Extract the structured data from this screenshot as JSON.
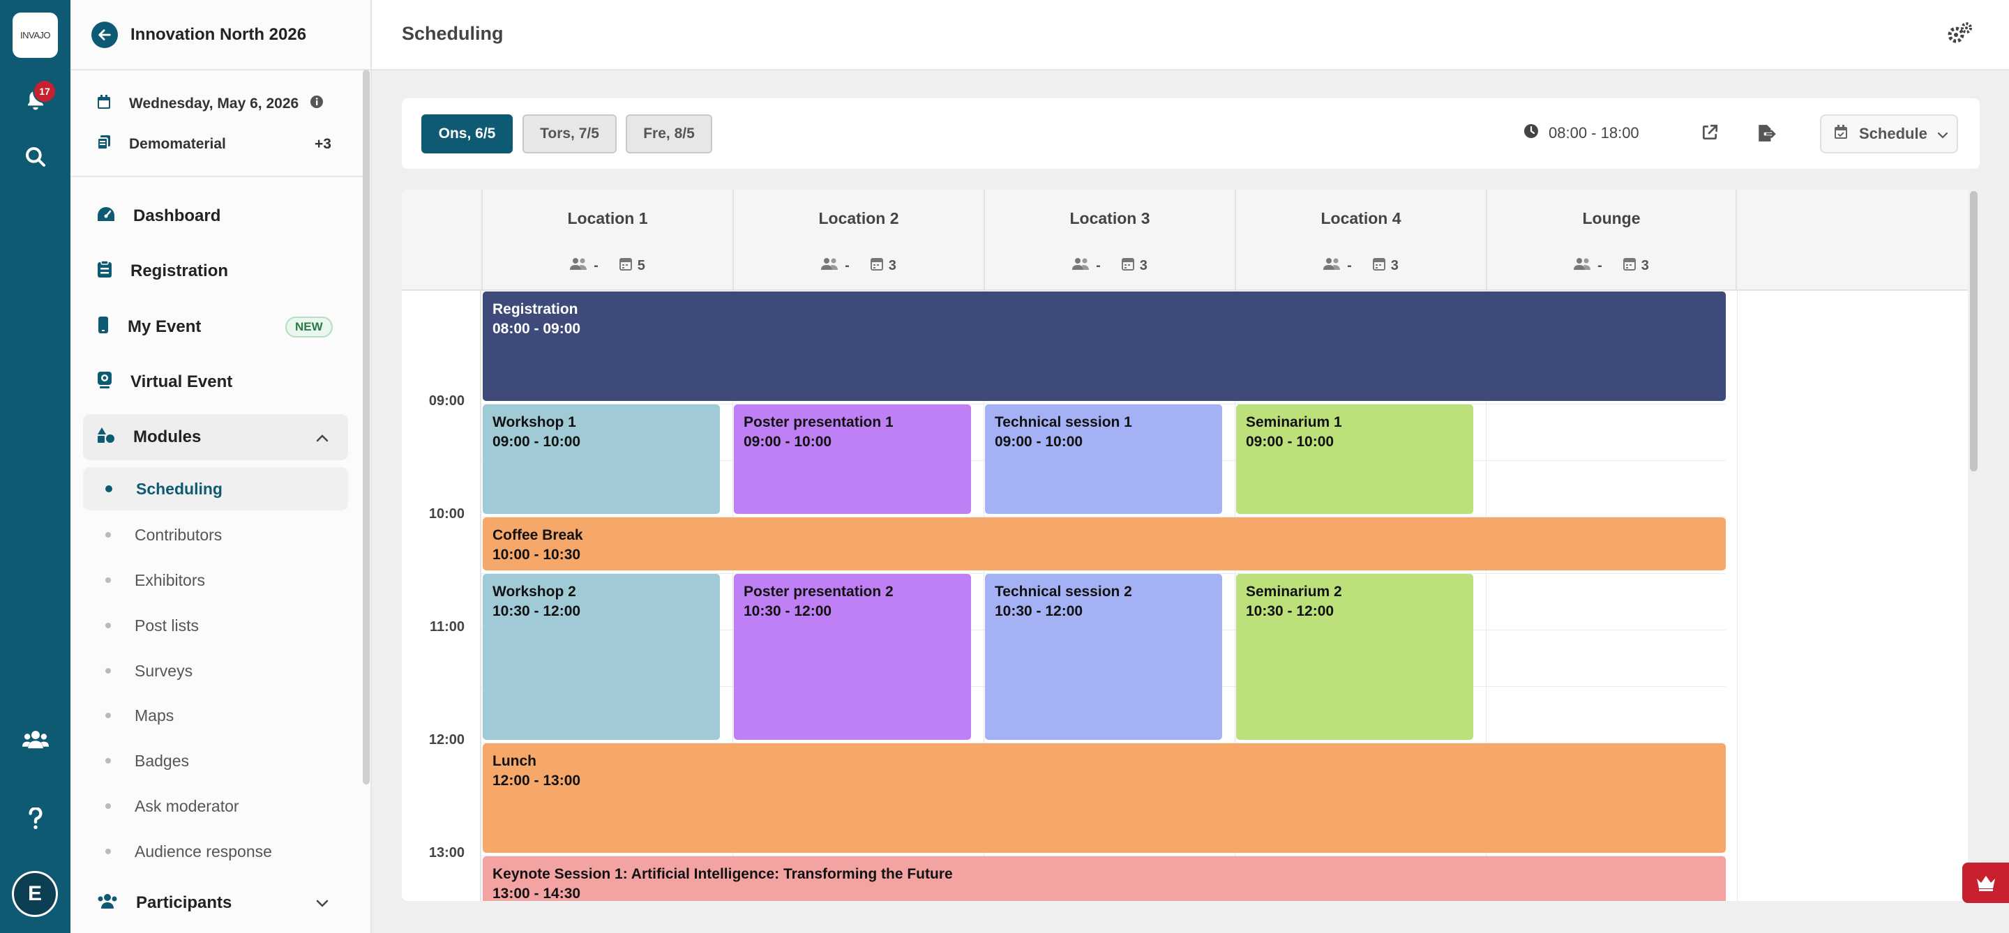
{
  "rail": {
    "logo_text": "INVAJO",
    "notification_count": "17",
    "user_initial": "E"
  },
  "sidebar": {
    "event_name": "Innovation North 2026",
    "date_label": "Wednesday, May 6, 2026",
    "material_label": "Demomaterial",
    "material_extra": "+3",
    "nav": {
      "dashboard": "Dashboard",
      "registration": "Registration",
      "my_event": "My Event",
      "my_event_badge": "NEW",
      "virtual_event": "Virtual Event",
      "modules": "Modules",
      "participants": "Participants"
    },
    "modules": [
      "Scheduling",
      "Contributors",
      "Exhibitors",
      "Post lists",
      "Surveys",
      "Maps",
      "Badges",
      "Ask moderator",
      "Audience response"
    ]
  },
  "header": {
    "title": "Scheduling"
  },
  "toolbar": {
    "days": [
      {
        "label": "Ons, 6/5",
        "active": true
      },
      {
        "label": "Tors, 7/5",
        "active": false
      },
      {
        "label": "Fre, 8/5",
        "active": false
      }
    ],
    "time_range": "08:00 - 18:00",
    "view_label": "Schedule"
  },
  "calendar": {
    "locations": [
      {
        "name": "Location 1",
        "people": "-",
        "count": "5"
      },
      {
        "name": "Location 2",
        "people": "-",
        "count": "3"
      },
      {
        "name": "Location 3",
        "people": "-",
        "count": "3"
      },
      {
        "name": "Location 4",
        "people": "-",
        "count": "3"
      },
      {
        "name": "Lounge",
        "people": "-",
        "count": "3"
      }
    ],
    "time_labels": [
      "09:00",
      "10:00",
      "11:00",
      "12:00",
      "13:00"
    ],
    "events": [
      {
        "title": "Registration",
        "time": "08:00 - 09:00",
        "color": "#3d4a7a"
      },
      {
        "title": "Workshop 1",
        "time": "09:00 - 10:00",
        "color": "#a0cbd6"
      },
      {
        "title": "Poster presentation 1",
        "time": "09:00 - 10:00",
        "color": "#c080f5"
      },
      {
        "title": "Technical session 1",
        "time": "09:00 - 10:00",
        "color": "#a4b2f5"
      },
      {
        "title": "Seminarium 1",
        "time": "09:00 - 10:00",
        "color": "#bce07a"
      },
      {
        "title": "Coffee Break",
        "time": "10:00 - 10:30",
        "color": "#f5a86a"
      },
      {
        "title": "Workshop 2",
        "time": "10:30 - 12:00",
        "color": "#a0cbd6"
      },
      {
        "title": "Poster presentation 2",
        "time": "10:30 - 12:00",
        "color": "#c080f5"
      },
      {
        "title": "Technical session 2",
        "time": "10:30 - 12:00",
        "color": "#a4b2f5"
      },
      {
        "title": "Seminarium 2",
        "time": "10:30 - 12:00",
        "color": "#bce07a"
      },
      {
        "title": "Lunch",
        "time": "12:00 - 13:00",
        "color": "#f5a86a"
      },
      {
        "title": "Keynote Session 1: Artificial Intelligence: Transforming the Future",
        "time": "13:00 - 14:30",
        "color": "#f4a3a3"
      }
    ]
  },
  "colors": {
    "primary": "#0f5a73",
    "danger": "#c8202e"
  }
}
